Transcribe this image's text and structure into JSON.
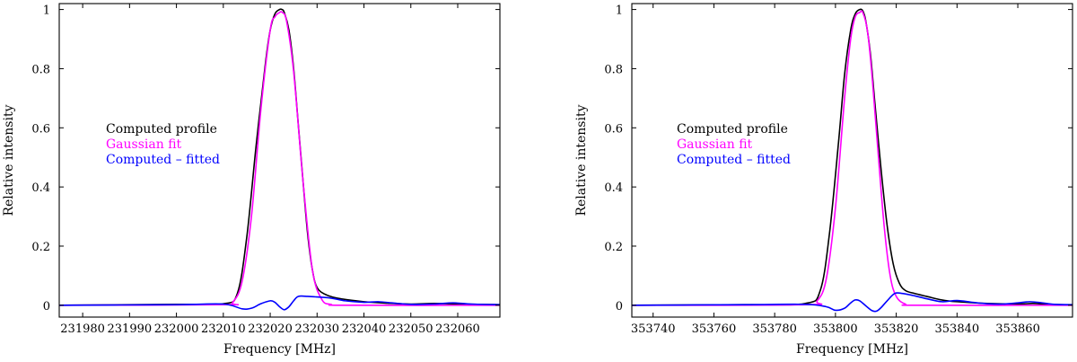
{
  "chart_data": [
    {
      "type": "line",
      "xlabel": "Frequency [MHz]",
      "ylabel": "Relative intensity",
      "xlim": [
        231975,
        232069
      ],
      "ylim": [
        -0.04,
        1.02
      ],
      "x_ticks": [
        231980,
        231990,
        232000,
        232010,
        232020,
        232030,
        232040,
        232050,
        232060
      ],
      "y_ticks": [
        0,
        0.2,
        0.4,
        0.6,
        0.8,
        1
      ],
      "legend_placement": "center-left",
      "series": [
        {
          "name": "Computed profile",
          "color": "#000000",
          "x": [
            231975,
            232000,
            232010,
            232013,
            232015,
            232017,
            232019,
            232020,
            232021,
            232022,
            232022.5,
            232023,
            232024,
            232025,
            232026,
            232027,
            232028,
            232029,
            232030,
            232032,
            232035,
            232040,
            232045,
            232050,
            232055,
            232060,
            232069
          ],
          "y": [
            0,
            0.003,
            0.005,
            0.04,
            0.23,
            0.54,
            0.82,
            0.93,
            0.985,
            1.0,
            1.0,
            0.99,
            0.93,
            0.8,
            0.61,
            0.42,
            0.24,
            0.12,
            0.06,
            0.035,
            0.022,
            0.012,
            0.007,
            0.004,
            0.006,
            0.004,
            0.002
          ]
        },
        {
          "name": "Gaussian fit",
          "color": "#ff00ff",
          "x": [
            231975,
            232010,
            232012,
            232014,
            232016,
            232018,
            232020,
            232021,
            232022,
            232022.6,
            232023.5,
            232025,
            232027,
            232029,
            232031,
            232033,
            232036,
            232069
          ],
          "y": [
            0,
            0.002,
            0.01,
            0.08,
            0.3,
            0.66,
            0.93,
            0.975,
            0.99,
            0.99,
            0.96,
            0.79,
            0.42,
            0.12,
            0.02,
            0.003,
            0,
            0
          ]
        },
        {
          "name": "Computed – fitted",
          "color": "#0000ff",
          "x": [
            231975,
            232000,
            232010,
            232014,
            232016,
            232018,
            232020,
            232021,
            232022,
            232023,
            232024,
            232025,
            232026,
            232028,
            232030,
            232033,
            232036,
            232040,
            232043,
            232046,
            232050,
            232055,
            232059,
            232063,
            232069
          ],
          "y": [
            0,
            0.002,
            0.004,
            -0.012,
            -0.01,
            0.005,
            0.015,
            0.01,
            -0.005,
            -0.015,
            -0.005,
            0.015,
            0.03,
            0.03,
            0.028,
            0.024,
            0.015,
            0.01,
            0.012,
            0.008,
            0.003,
            0.004,
            0.008,
            0.004,
            0.002
          ]
        }
      ]
    },
    {
      "type": "line",
      "xlabel": "Frequency [MHz]",
      "ylabel": "Relative intensity",
      "xlim": [
        353733,
        353878
      ],
      "ylim": [
        -0.04,
        1.02
      ],
      "x_ticks": [
        353740,
        353760,
        353780,
        353800,
        353820,
        353840,
        353860
      ],
      "y_ticks": [
        0,
        0.2,
        0.4,
        0.6,
        0.8,
        1
      ],
      "legend_placement": "center-left",
      "series": [
        {
          "name": "Computed profile",
          "color": "#000000",
          "x": [
            353733,
            353770,
            353790,
            353795,
            353798,
            353801,
            353803,
            353805,
            353806.5,
            353808,
            353809,
            353810,
            353811.5,
            353813,
            353815,
            353817,
            353819,
            353821,
            353823,
            353826,
            353830,
            353835,
            353840,
            353850,
            353860,
            353865,
            353870,
            353878
          ],
          "y": [
            0,
            0.002,
            0.006,
            0.05,
            0.24,
            0.55,
            0.78,
            0.93,
            0.985,
            1.0,
            0.995,
            0.96,
            0.85,
            0.68,
            0.46,
            0.27,
            0.14,
            0.075,
            0.05,
            0.04,
            0.03,
            0.018,
            0.012,
            0.006,
            0.004,
            0.006,
            0.003,
            0.001
          ]
        },
        {
          "name": "Gaussian fit",
          "color": "#ff00ff",
          "x": [
            353733,
            353790,
            353794,
            353797,
            353800,
            353803,
            353805,
            353806.5,
            353808,
            353809,
            353810.5,
            353812,
            353814,
            353816,
            353818,
            353820,
            353823,
            353827,
            353878
          ],
          "y": [
            0,
            0.002,
            0.015,
            0.09,
            0.33,
            0.7,
            0.9,
            0.975,
            0.99,
            0.99,
            0.93,
            0.78,
            0.52,
            0.27,
            0.1,
            0.03,
            0.004,
            0,
            0
          ]
        },
        {
          "name": "Computed – fitted",
          "color": "#0000ff",
          "x": [
            353733,
            353770,
            353790,
            353797,
            353800,
            353803,
            353805,
            353806.5,
            353808,
            353810,
            353812,
            353813.5,
            353815,
            353817,
            353819.5,
            353822,
            353826,
            353830,
            353835,
            353840,
            353845,
            353850,
            353855,
            353860,
            353864,
            353868,
            353872,
            353878
          ],
          "y": [
            0,
            0.002,
            0.003,
            -0.005,
            -0.017,
            -0.01,
            0.008,
            0.018,
            0.015,
            -0.002,
            -0.018,
            -0.02,
            -0.008,
            0.015,
            0.04,
            0.04,
            0.032,
            0.022,
            0.012,
            0.016,
            0.01,
            0.005,
            0.004,
            0.008,
            0.012,
            0.008,
            0.003,
            0.002
          ]
        }
      ]
    }
  ]
}
